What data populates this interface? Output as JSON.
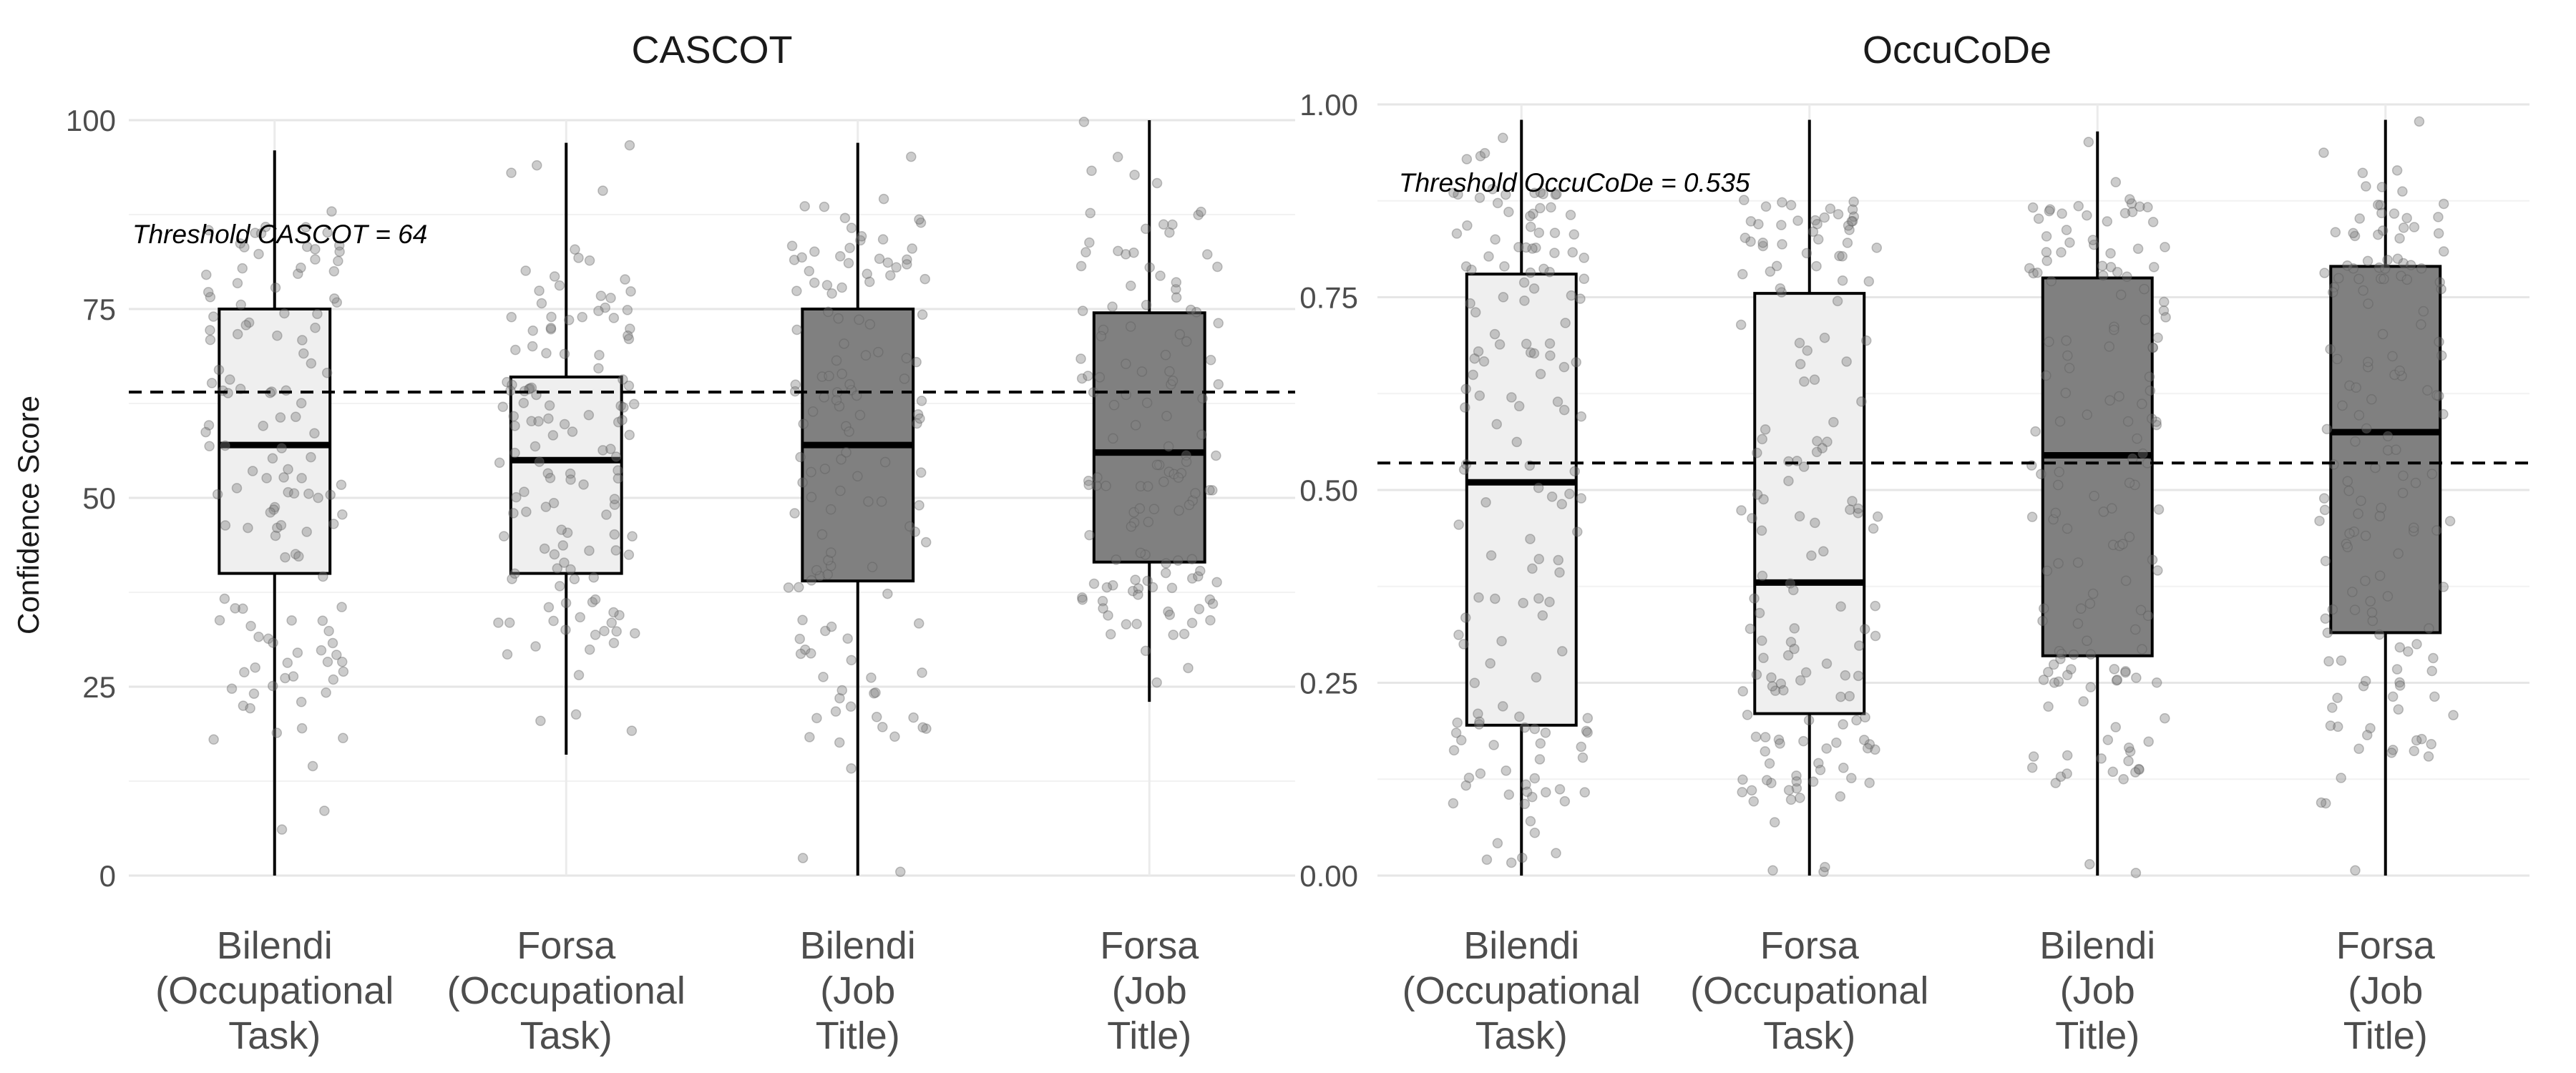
{
  "chart_data": [
    {
      "type": "boxplot",
      "title": "CASCOT",
      "ylabel": "Confidence Score",
      "xlabel": "",
      "ylim": [
        0,
        100
      ],
      "yticks": [
        0,
        25,
        50,
        75,
        100
      ],
      "ytick_labels": [
        "0",
        "25",
        "50",
        "75",
        "100"
      ],
      "grid": true,
      "categories": [
        [
          "Bilendi",
          "(Occupational",
          "Task)"
        ],
        [
          "Forsa",
          "(Occupational",
          "Task)"
        ],
        [
          "Bilendi",
          "(Job",
          "Title)"
        ],
        [
          "Forsa",
          "(Job",
          "Title)"
        ]
      ],
      "fills": [
        "#efefef",
        "#efefef",
        "#808080",
        "#808080"
      ],
      "boxes": [
        {
          "min": 0,
          "q1": 40,
          "median": 57,
          "q3": 75,
          "max": 96
        },
        {
          "min": 16,
          "q1": 40,
          "median": 55,
          "q3": 66,
          "max": 97
        },
        {
          "min": 0,
          "q1": 39,
          "median": 57,
          "q3": 75,
          "max": 97
        },
        {
          "min": 23,
          "q1": 41.5,
          "median": 56,
          "q3": 74.5,
          "max": 100
        }
      ],
      "threshold": {
        "value": 64,
        "label": "Threshold CASCOT = 64"
      },
      "jitter_points_per_group": 130,
      "seed": 11
    },
    {
      "type": "boxplot",
      "title": "OccuCoDe",
      "ylabel": "",
      "xlabel": "",
      "ylim": [
        0,
        1
      ],
      "yticks": [
        0,
        0.25,
        0.5,
        0.75,
        1
      ],
      "ytick_labels": [
        "0.00",
        "0.25",
        "0.50",
        "0.75",
        "1.00"
      ],
      "grid": true,
      "categories": [
        [
          "Bilendi",
          "(Occupational",
          "Task)"
        ],
        [
          "Forsa",
          "(Occupational",
          "Task)"
        ],
        [
          "Bilendi",
          "(Job",
          "Title)"
        ],
        [
          "Forsa",
          "(Job",
          "Title)"
        ]
      ],
      "fills": [
        "#efefef",
        "#efefef",
        "#808080",
        "#808080"
      ],
      "boxes": [
        {
          "min": 0,
          "q1": 0.195,
          "median": 0.51,
          "q3": 0.78,
          "max": 0.98
        },
        {
          "min": 0,
          "q1": 0.21,
          "median": 0.38,
          "q3": 0.755,
          "max": 0.98
        },
        {
          "min": 0,
          "q1": 0.285,
          "median": 0.545,
          "q3": 0.775,
          "max": 0.965
        },
        {
          "min": 0,
          "q1": 0.315,
          "median": 0.575,
          "q3": 0.79,
          "max": 0.98
        }
      ],
      "threshold": {
        "value": 0.535,
        "label": "Threshold OccuCoDe = 0.535"
      },
      "jitter_points_per_group": 150,
      "seed": 29
    }
  ]
}
